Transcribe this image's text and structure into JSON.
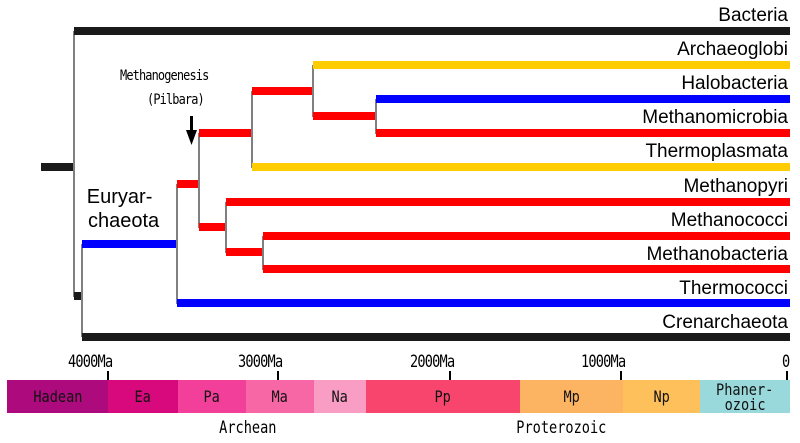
{
  "taxa": [
    "Bacteria",
    "Archaeoglobi",
    "Halobacteria",
    "Methanomicrobia",
    "Thermoplasmata",
    "Methanopyri",
    "Methanococci",
    "Methanobacteria",
    "Thermococci",
    "Crenarchaeota"
  ],
  "clade_label": {
    "line1": "Euryar-",
    "line2": "chaeota"
  },
  "annotation": {
    "line1": "Methanogenesis",
    "line2": "(Pilbara)"
  },
  "axis_ticks": [
    "4000Ma",
    "3000Ma",
    "2000Ma",
    "1000Ma",
    "0"
  ],
  "periods": [
    "Hadean",
    "Ea",
    "Pa",
    "Ma",
    "Na",
    "Pp",
    "Mp",
    "Np",
    "Phaner-",
    "ozoic"
  ],
  "eons": [
    "Archean",
    "Proterozoic"
  ],
  "colors": {
    "methanogen": "#ff0000",
    "halo": "#0000ff",
    "non_methanogen": "#ffcc00",
    "other": "#1a1a1a"
  }
}
